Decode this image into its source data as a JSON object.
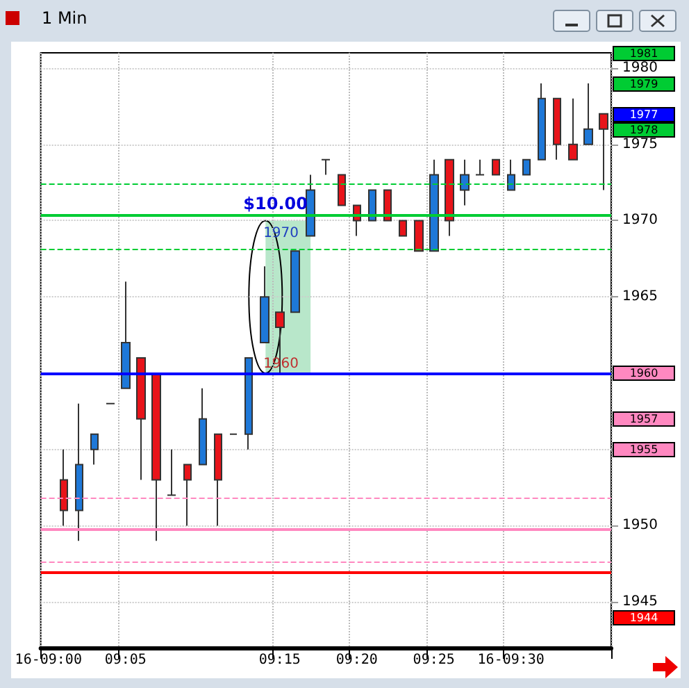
{
  "chart_data": {
    "type": "candlestick",
    "title": "1 Min",
    "categories": [
      "16-09:00",
      null,
      null,
      null,
      null,
      "09:05",
      null,
      null,
      null,
      null,
      null,
      null,
      null,
      null,
      null,
      "09:15",
      null,
      null,
      null,
      null,
      "09:20",
      null,
      null,
      null,
      null,
      "09:25",
      null,
      null,
      null,
      null,
      "16-09:30",
      null,
      null,
      null,
      null,
      null,
      null
    ],
    "ohlc": [
      null,
      [
        1953,
        1955,
        1950,
        1951
      ],
      [
        1951,
        1958,
        1949,
        1954
      ],
      [
        1955,
        1956,
        1954,
        1956
      ],
      [
        1958,
        1958,
        1958,
        1958
      ],
      [
        1959,
        1966,
        1959,
        1962
      ],
      [
        1961,
        1961,
        1953,
        1957
      ],
      [
        1960,
        1960,
        1949,
        1953
      ],
      [
        1952,
        1955,
        1952,
        1952
      ],
      [
        1954,
        1954,
        1950,
        1953
      ],
      [
        1954,
        1959,
        1954,
        1957
      ],
      [
        1956,
        1956,
        1950,
        1953
      ],
      [
        1956,
        1956,
        1956,
        1956
      ],
      [
        1956,
        1961,
        1955,
        1961
      ],
      [
        1962,
        1967,
        1962,
        1965
      ],
      [
        1964,
        1964,
        1960,
        1963
      ],
      [
        1964,
        1968,
        1964,
        1968
      ],
      [
        1969,
        1973,
        1969,
        1972
      ],
      [
        1974,
        1974,
        1973,
        1974
      ],
      [
        1973,
        1973,
        1971,
        1971
      ],
      [
        1971,
        1971,
        1969,
        1970
      ],
      [
        1970,
        1972,
        1970,
        1972
      ],
      [
        1972,
        1972,
        1970,
        1970
      ],
      [
        1970,
        1970,
        1969,
        1969
      ],
      [
        1970,
        1970,
        1968,
        1968
      ],
      [
        1968,
        1974,
        1968,
        1973
      ],
      [
        1974,
        1974,
        1969,
        1970
      ],
      [
        1972,
        1974,
        1971,
        1973
      ],
      [
        1973,
        1974,
        1973,
        1973
      ],
      [
        1974,
        1974,
        1973,
        1973
      ],
      [
        1972,
        1974,
        1972,
        1973
      ],
      [
        1973,
        1974,
        1973,
        1974
      ],
      [
        1974,
        1979,
        1974,
        1978
      ],
      [
        1978,
        1978,
        1974,
        1975
      ],
      [
        1975,
        1978,
        1974,
        1974
      ],
      [
        1975,
        1979,
        1975,
        1976
      ],
      [
        1977,
        1977,
        1972,
        1976
      ]
    ],
    "colors": [
      null,
      "#e8141a",
      "#1e78d8",
      "#1e78d8",
      "#333333",
      "#1e78d8",
      "#e8141a",
      "#e8141a",
      "#333333",
      "#e8141a",
      "#1e78d8",
      "#e8141a",
      "#333333",
      "#1e78d8",
      "#1e78d8",
      "#e8141a",
      "#1e78d8",
      "#1e78d8",
      "#333333",
      "#e8141a",
      "#e8141a",
      "#1e78d8",
      "#e8141a",
      "#e8141a",
      "#e8141a",
      "#1e78d8",
      "#e8141a",
      "#1e78d8",
      "#333333",
      "#e8141a",
      "#1e78d8",
      "#1e78d8",
      "#1e78d8",
      "#e8141a",
      "#e8141a",
      "#1e78d8",
      "#e8141a"
    ],
    "ylim": [
      1942,
      1981
    ],
    "yticks": [
      1945,
      1950,
      {
        "value": 1955,
        "label": null
      },
      {
        "value": 1960,
        "label": null
      },
      1965,
      1970,
      1975,
      1980
    ],
    "grid": true,
    "ref_lines": [
      {
        "axis": "y",
        "value": 1972.4,
        "color": "#00cc33",
        "line_style": "dashed"
      },
      {
        "axis": "y",
        "value": 1970.4,
        "color": "#00cc33",
        "line_style": "solid"
      },
      {
        "axis": "y",
        "value": 1968.1,
        "color": "#00cc33",
        "line_style": "dashed"
      },
      {
        "axis": "y",
        "value": 1960,
        "color": "#0000ff",
        "line_style": "solid"
      },
      {
        "axis": "y",
        "value": 1951.8,
        "color": "#ff88c0",
        "line_style": "dashed"
      },
      {
        "axis": "y",
        "value": 1949.8,
        "color": "#ff88c0",
        "line_style": "solid"
      },
      {
        "axis": "y",
        "value": 1947.6,
        "color": "#ff88c0",
        "line_style": "dashed"
      },
      {
        "axis": "y",
        "value": 1946.9,
        "color": "#ff0000",
        "line_style": "solid"
      }
    ],
    "annotations": [
      "$10.00",
      "1970",
      "1960",
      "1981",
      "1979",
      "1977",
      "1978",
      "1960",
      "1957",
      "1955",
      "1944"
    ]
  }
}
